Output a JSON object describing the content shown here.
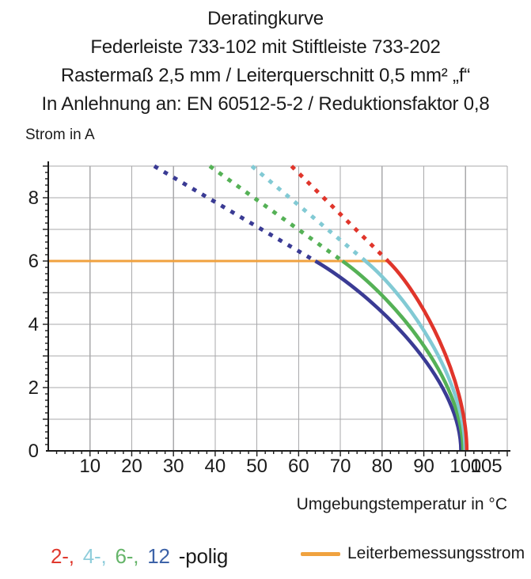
{
  "header": {
    "lines": [
      "Deratingkurve",
      "Federleiste 733-102 mit Stiftleiste 733-202",
      "Rastermaß 2,5 mm / Leiterquerschnitt 0,5 mm² „f“",
      "In Anlehnung an: EN 60512-5-2 / Reduktionsfaktor 0,8"
    ]
  },
  "chart_data": {
    "type": "line",
    "title": "Deratingkurve",
    "xlabel": "Umgebungstemperatur in °C",
    "ylabel": "Strom in A",
    "xlim": [
      0,
      110
    ],
    "ylim": [
      0,
      9
    ],
    "grid": true,
    "x_grid_step": 10,
    "x_minor_tick_step": 2,
    "y_grid_step": 1,
    "y_minor_tick_step": 0.2,
    "x_tick_labels": [
      10,
      20,
      30,
      40,
      50,
      60,
      70,
      80,
      90,
      100,
      105
    ],
    "y_tick_labels": [
      0,
      2,
      4,
      6,
      8
    ],
    "grid_color": "#a9a9ab",
    "axis_color": "#1b1b1b",
    "rated_current_line": {
      "label": "Leiterbemessungsstrom",
      "color": "#F0A23F",
      "y": 6,
      "x_start": 0,
      "x_end": 81.4
    },
    "series": [
      {
        "name": "12-polig",
        "color": "#3A3B94",
        "dashed_segment": [
          [
            25.4,
            9
          ],
          [
            64.0,
            6
          ]
        ],
        "solid_bezier": [
          [
            64.0,
            6
          ],
          [
            78.0,
            4.92
          ],
          [
            98.9,
            2.3
          ],
          [
            98.9,
            0
          ]
        ]
      },
      {
        "name": "6-polig",
        "color": "#55B156",
        "dashed_segment": [
          [
            38.7,
            9
          ],
          [
            70.5,
            6
          ]
        ],
        "solid_bezier": [
          [
            70.5,
            6
          ],
          [
            82.1,
            4.91
          ],
          [
            99.4,
            2.3
          ],
          [
            99.4,
            0
          ]
        ]
      },
      {
        "name": "4-polig",
        "color": "#82CAD4",
        "dashed_segment": [
          [
            48.8,
            9
          ],
          [
            76.0,
            6
          ]
        ],
        "solid_bezier": [
          [
            76.0,
            6
          ],
          [
            85.6,
            4.95
          ],
          [
            99.9,
            2.3
          ],
          [
            99.9,
            0
          ]
        ]
      },
      {
        "name": "2-polig",
        "color": "#E0352B",
        "dashed_segment": [
          [
            58.3,
            9
          ],
          [
            81.4,
            6
          ]
        ],
        "solid_bezier": [
          [
            81.4,
            6
          ],
          [
            89.0,
            5.02
          ],
          [
            100.3,
            2.3
          ],
          [
            100.3,
            0
          ]
        ]
      }
    ]
  },
  "legend": {
    "polig_items": [
      {
        "label": "2-,",
        "color": "#E0392E"
      },
      {
        "label": "4-,",
        "color": "#8FCDDB"
      },
      {
        "label": "6-,",
        "color": "#66B56A"
      },
      {
        "label": "12",
        "color": "#3D63A8"
      }
    ],
    "polig_suffix": "-polig",
    "polig_suffix_color": "#1b1b1b",
    "rated_line_label": "Leiterbemessungsstrom",
    "rated_line_color": "#F0A23F"
  }
}
